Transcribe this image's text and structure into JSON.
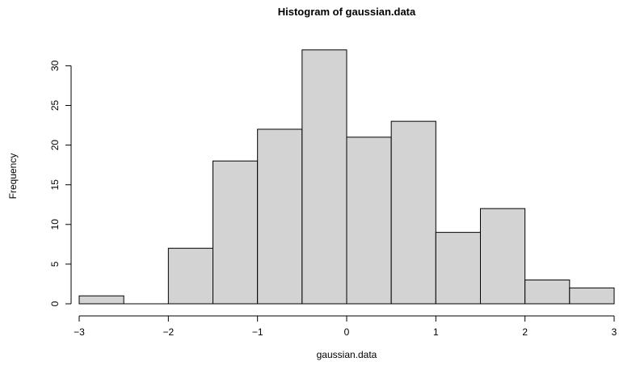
{
  "chart_data": {
    "type": "bar",
    "title": "Histogram of gaussian.data",
    "xlabel": "gaussian.data",
    "ylabel": "Frequency",
    "bins": [
      {
        "x0": -3.0,
        "x1": -2.5,
        "count": 1
      },
      {
        "x0": -2.5,
        "x1": -2.0,
        "count": 0
      },
      {
        "x0": -2.0,
        "x1": -1.5,
        "count": 7
      },
      {
        "x0": -1.5,
        "x1": -1.0,
        "count": 18
      },
      {
        "x0": -1.0,
        "x1": -0.5,
        "count": 22
      },
      {
        "x0": -0.5,
        "x1": 0.0,
        "count": 32
      },
      {
        "x0": 0.0,
        "x1": 0.5,
        "count": 21
      },
      {
        "x0": 0.5,
        "x1": 1.0,
        "count": 23
      },
      {
        "x0": 1.0,
        "x1": 1.5,
        "count": 9
      },
      {
        "x0": 1.5,
        "x1": 2.0,
        "count": 12
      },
      {
        "x0": 2.0,
        "x1": 2.5,
        "count": 3
      },
      {
        "x0": 2.5,
        "x1": 3.0,
        "count": 2
      }
    ],
    "xlim": [
      -3,
      3
    ],
    "ylim": [
      0,
      32
    ],
    "xticks": [
      -3,
      -2,
      -1,
      0,
      1,
      2,
      3
    ],
    "xtick_labels": [
      "−3",
      "−2",
      "−1",
      "0",
      "1",
      "2",
      "3"
    ],
    "yticks": [
      0,
      5,
      10,
      15,
      20,
      25,
      30
    ],
    "ytick_labels": [
      "0",
      "5",
      "10",
      "15",
      "20",
      "25",
      "30"
    ],
    "colors": {
      "bar_fill": "#d3d3d3",
      "bar_stroke": "#000000"
    },
    "grid": false
  }
}
